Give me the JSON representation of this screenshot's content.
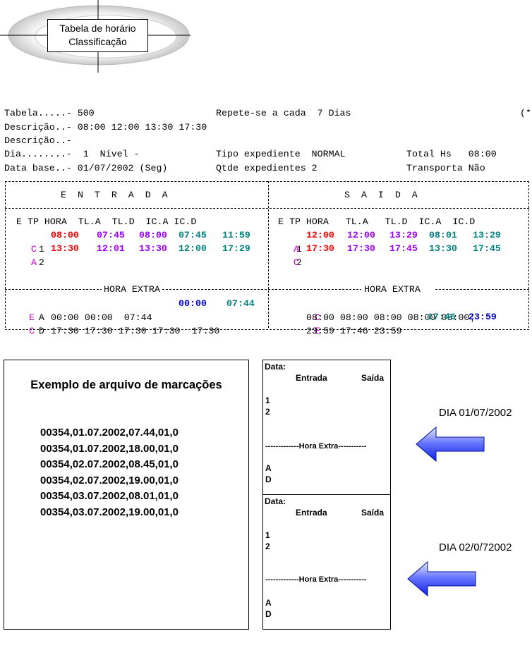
{
  "logo": {
    "line1": "Tabela de horário",
    "line2": "Classificação"
  },
  "header": {
    "l1a": "Tabela.....- 500",
    "l1b": "Repete-se a cada  7 Dias",
    "l1c": "(*",
    "l2": "Descrição..- 08:00 12:00 13:30 17:30",
    "l3": "Descrição..-",
    "l4a": "Dia........-  1  Nível -",
    "l4b": "Tipo expediente  NORMAL",
    "l4c": "Total Hs   08:00",
    "l5a": "Data base..- 01/07/2002 (Seg)",
    "l5b": "Qtde expedientes 2",
    "l5c": "Transporta Não"
  },
  "grid": {
    "sep_top": "+-------------------------------------+-------------------------------------+",
    "entrada_title": "¦      E  N  T  R  A  D  A            ¦          S  A  I  D  A              ¦",
    "sep_mid": "+-------------------------------------+-------------------------------------+",
    "cols_left": "¦ E TP HORA  TL.A  TL.D  IC.A IC.D",
    "cols_right": "¦ E TP HORA   TL.A   TL.D  IC.A  IC.D¦",
    "blank": "¦                                                                           ¦",
    "he_sep": "+-------------HORA EXTRA---------------+-------------HORA EXTRA------------+",
    "bottom": "+---------------------------------------------------------------------------+"
  },
  "entrada_rows": [
    {
      "e": "1",
      "tp": "C",
      "hora": "08:00",
      "tla": "07:45",
      "tld": "08:00",
      "ica": "07:45",
      "icd": "11:59"
    },
    {
      "e": "2",
      "tp": "A",
      "hora": "13:30",
      "tla": "12:01",
      "tld": "13:30",
      "ica": "12:00",
      "icd": "17:29"
    }
  ],
  "saida_rows": [
    {
      "e": "1",
      "tp": "A",
      "hora": "12:00",
      "tla": "12:00",
      "tld": "13:29",
      "ica": "08:01",
      "icd": "13:29"
    },
    {
      "e": "2",
      "tp": "C",
      "hora": "17:30",
      "tla": "17:30",
      "tld": "17:45",
      "ica": "13:30",
      "icd": "17:45"
    }
  ],
  "hora_extra_rows": [
    {
      "l_e": "A",
      "l_tp": "E",
      "l_plain": "00:00 00:00  07:44",
      "l_b1": "00:00",
      "l_b2": "07:44",
      "r_tp": "C",
      "r_plain": "08:00 08:00 08:00 08:00 08:00¦",
      "r_b1": "",
      "r_b2": ""
    },
    {
      "l_e": "D",
      "l_tp": "C",
      "l_plain": "17:30 17:30 17:30 17:30  17:30",
      "l_b1": "",
      "l_b2": "",
      "r_tp": "E",
      "r_plain": "23:59 17:46 23:59",
      "r_b1": "17:46",
      "r_b2": "23:59"
    }
  ],
  "example": {
    "title": "Exemplo de arquivo de marcações",
    "lines": [
      "00354,01.07.2002,07.44,01,0",
      "00354,01.07.2002,18.00,01,0",
      "00354,02.07.2002,08.45,01,0",
      "00354,02.07.2002,19.00,01,0",
      "00354,03.07.2002,08.01,01,0",
      "00354,03.07.2002,19.00,01,0"
    ]
  },
  "day_cards": [
    {
      "data_label": "Data:",
      "entrada": "Entrada",
      "saida": "Saída",
      "r1": "1",
      "r2": "2",
      "hora_extra": "-------------Hora Extra-----------",
      "a": "A",
      "d": "D",
      "callout": "DIA 01/07/2002"
    },
    {
      "data_label": "Data:",
      "entrada": "Entrada",
      "saida": "Saída",
      "r1": "1",
      "r2": "2",
      "hora_extra": "-------------Hora Extra-----------",
      "a": "A",
      "d": "D",
      "callout": "DIA 02/0/72002"
    }
  ],
  "colors": {
    "red": "#ff0000",
    "purple": "#9900ff",
    "teal": "#008080",
    "blue": "#0000cc",
    "magenta": "#cc00cc",
    "arrow": "#2233ff"
  }
}
